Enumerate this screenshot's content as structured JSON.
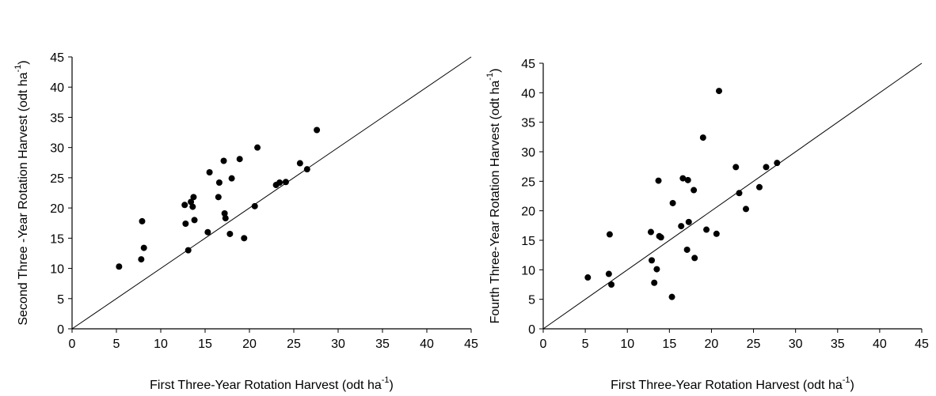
{
  "chart_data": [
    {
      "type": "scatter",
      "xlabel": "First Three-Year Rotation Harvest (odt ha",
      "xlabel_sup": "-1",
      "xlabel_end": ")",
      "ylabel": "Second Three -Year Rotation Harvest (odt ha",
      "ylabel_sup": "-1",
      "ylabel_end": ")",
      "xlim": [
        0,
        45
      ],
      "ylim": [
        0,
        45
      ],
      "xticks": [
        "0",
        "5",
        "10",
        "15",
        "20",
        "25",
        "30",
        "35",
        "40",
        "45"
      ],
      "yticks": [
        "0",
        "5",
        "10",
        "15",
        "20",
        "25",
        "30",
        "35",
        "40",
        "45"
      ],
      "reference_line": "1:1",
      "grid": false,
      "series": [
        {
          "color": "#000000",
          "points": [
            [
              5.3,
              10.3
            ],
            [
              7.8,
              11.5
            ],
            [
              7.9,
              17.8
            ],
            [
              8.1,
              13.4
            ],
            [
              12.7,
              20.5
            ],
            [
              12.8,
              17.4
            ],
            [
              13.1,
              13.0
            ],
            [
              13.4,
              21.0
            ],
            [
              13.6,
              20.2
            ],
            [
              13.7,
              21.8
            ],
            [
              13.8,
              18.0
            ],
            [
              15.3,
              16.0
            ],
            [
              15.5,
              25.9
            ],
            [
              16.5,
              21.8
            ],
            [
              16.6,
              24.2
            ],
            [
              17.1,
              27.8
            ],
            [
              17.2,
              19.1
            ],
            [
              17.3,
              18.3
            ],
            [
              17.8,
              15.7
            ],
            [
              18.0,
              24.9
            ],
            [
              18.9,
              28.1
            ],
            [
              19.4,
              15.0
            ],
            [
              20.6,
              20.3
            ],
            [
              20.9,
              30.0
            ],
            [
              23.0,
              23.8
            ],
            [
              23.4,
              24.2
            ],
            [
              24.1,
              24.3
            ],
            [
              25.7,
              27.4
            ],
            [
              26.5,
              26.4
            ],
            [
              27.6,
              32.9
            ]
          ]
        }
      ]
    },
    {
      "type": "scatter",
      "xlabel": "First Three-Year Rotation Harvest (odt ha",
      "xlabel_sup": "-1",
      "xlabel_end": ")",
      "ylabel": "Fourth Three-Year Rotation Harvest (odt ha",
      "ylabel_sup": "-1",
      "ylabel_end": ")",
      "xlim": [
        0,
        45
      ],
      "ylim": [
        0,
        45
      ],
      "xticks": [
        "0",
        "5",
        "10",
        "15",
        "20",
        "25",
        "30",
        "35",
        "40",
        "45"
      ],
      "yticks": [
        "0",
        "5",
        "10",
        "15",
        "20",
        "25",
        "30",
        "35",
        "40",
        "45"
      ],
      "reference_line": "1:1",
      "grid": false,
      "series": [
        {
          "color": "#000000",
          "points": [
            [
              5.3,
              8.7
            ],
            [
              7.8,
              9.3
            ],
            [
              7.9,
              16.0
            ],
            [
              8.1,
              7.5
            ],
            [
              12.8,
              16.4
            ],
            [
              12.9,
              11.6
            ],
            [
              13.2,
              7.8
            ],
            [
              13.5,
              10.1
            ],
            [
              13.7,
              25.1
            ],
            [
              13.8,
              15.7
            ],
            [
              14.0,
              15.5
            ],
            [
              15.3,
              5.4
            ],
            [
              15.4,
              21.3
            ],
            [
              16.4,
              17.4
            ],
            [
              16.6,
              25.5
            ],
            [
              17.1,
              13.4
            ],
            [
              17.2,
              25.2
            ],
            [
              17.3,
              18.1
            ],
            [
              17.9,
              23.5
            ],
            [
              18.0,
              12.0
            ],
            [
              19.0,
              32.4
            ],
            [
              19.4,
              16.8
            ],
            [
              20.6,
              16.1
            ],
            [
              20.9,
              40.3
            ],
            [
              22.9,
              27.4
            ],
            [
              23.3,
              23.0
            ],
            [
              24.1,
              20.3
            ],
            [
              25.7,
              24.0
            ],
            [
              26.5,
              27.4
            ],
            [
              27.8,
              28.1
            ]
          ]
        }
      ]
    }
  ]
}
